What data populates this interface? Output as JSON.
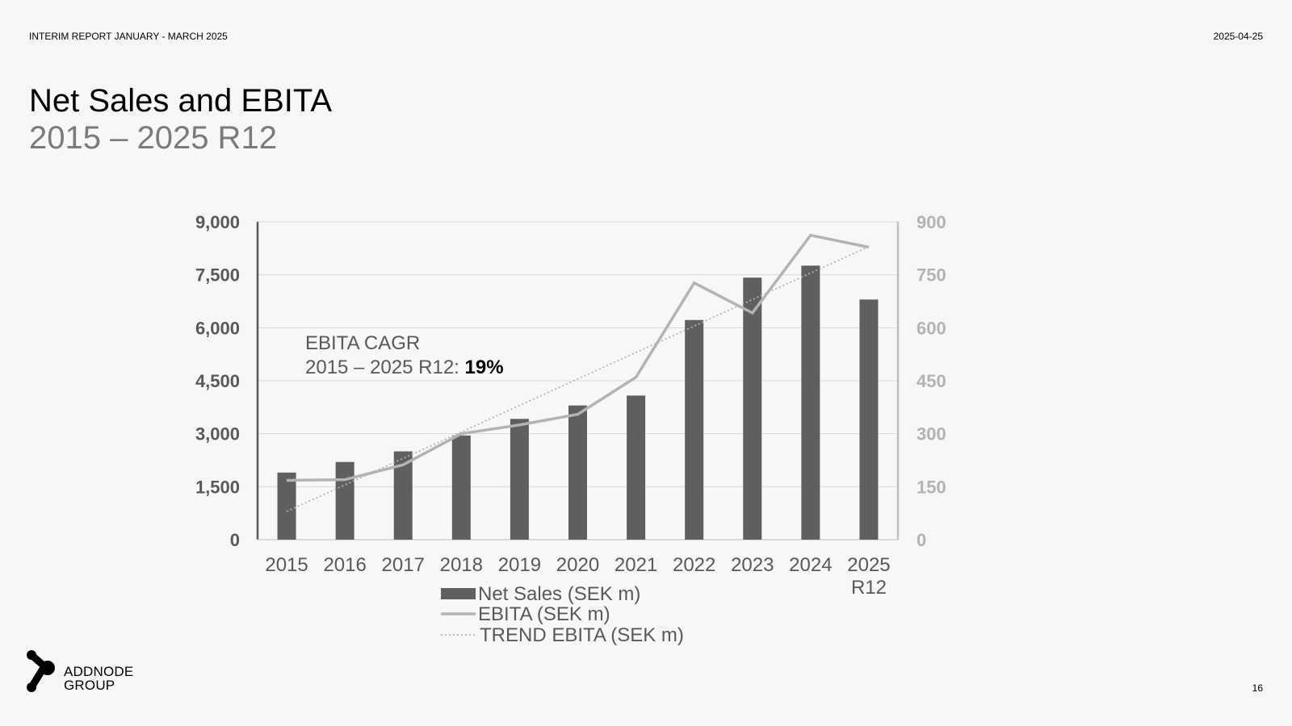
{
  "header": {
    "report_title": "INTERIM REPORT JANUARY - MARCH 2025",
    "date": "2025-04-25"
  },
  "slide": {
    "title": "Net Sales and EBITA",
    "subtitle": "2015 – 2025 R12",
    "page_number": "16"
  },
  "logo": {
    "line1": "ADDNODE",
    "line2": "GROUP"
  },
  "chart_data": {
    "type": "bar",
    "title": "Net Sales and EBITA",
    "categories": [
      "2015",
      "2016",
      "2017",
      "2018",
      "2019",
      "2020",
      "2021",
      "2022",
      "2023",
      "2024",
      "2025\nR12"
    ],
    "series": [
      {
        "name": "Net Sales (SEK m)",
        "type": "bar",
        "axis": "left",
        "color": "#5f5f5f",
        "values": [
          1900,
          2200,
          2500,
          2950,
          3420,
          3800,
          4080,
          6220,
          7420,
          7760,
          6800
        ]
      },
      {
        "name": "EBITA (SEK m)",
        "type": "line",
        "axis": "right",
        "color": "#b3b3b3",
        "values": [
          168,
          170,
          212,
          300,
          325,
          355,
          460,
          727,
          642,
          862,
          828
        ]
      },
      {
        "name": "TREND EBITA (SEK m)",
        "type": "line",
        "style": "dotted",
        "axis": "right",
        "color": "#b3b3b3",
        "values": [
          80,
          155,
          230,
          305,
          380,
          455,
          530,
          605,
          680,
          755,
          830
        ]
      }
    ],
    "left_axis": {
      "ylim": [
        0,
        9000
      ],
      "ticks": [
        "0",
        "1,500",
        "3,000",
        "4,500",
        "6,000",
        "7,500",
        "9,000"
      ]
    },
    "right_axis": {
      "ylim": [
        0,
        900
      ],
      "ticks": [
        "0",
        "150",
        "300",
        "450",
        "600",
        "750",
        "900"
      ]
    },
    "annotation": {
      "line1": "EBITA CAGR",
      "line2_prefix": "2015 – 2025 R12: ",
      "line2_value": "19%"
    },
    "legend_position": "bottom-center",
    "grid": true
  }
}
